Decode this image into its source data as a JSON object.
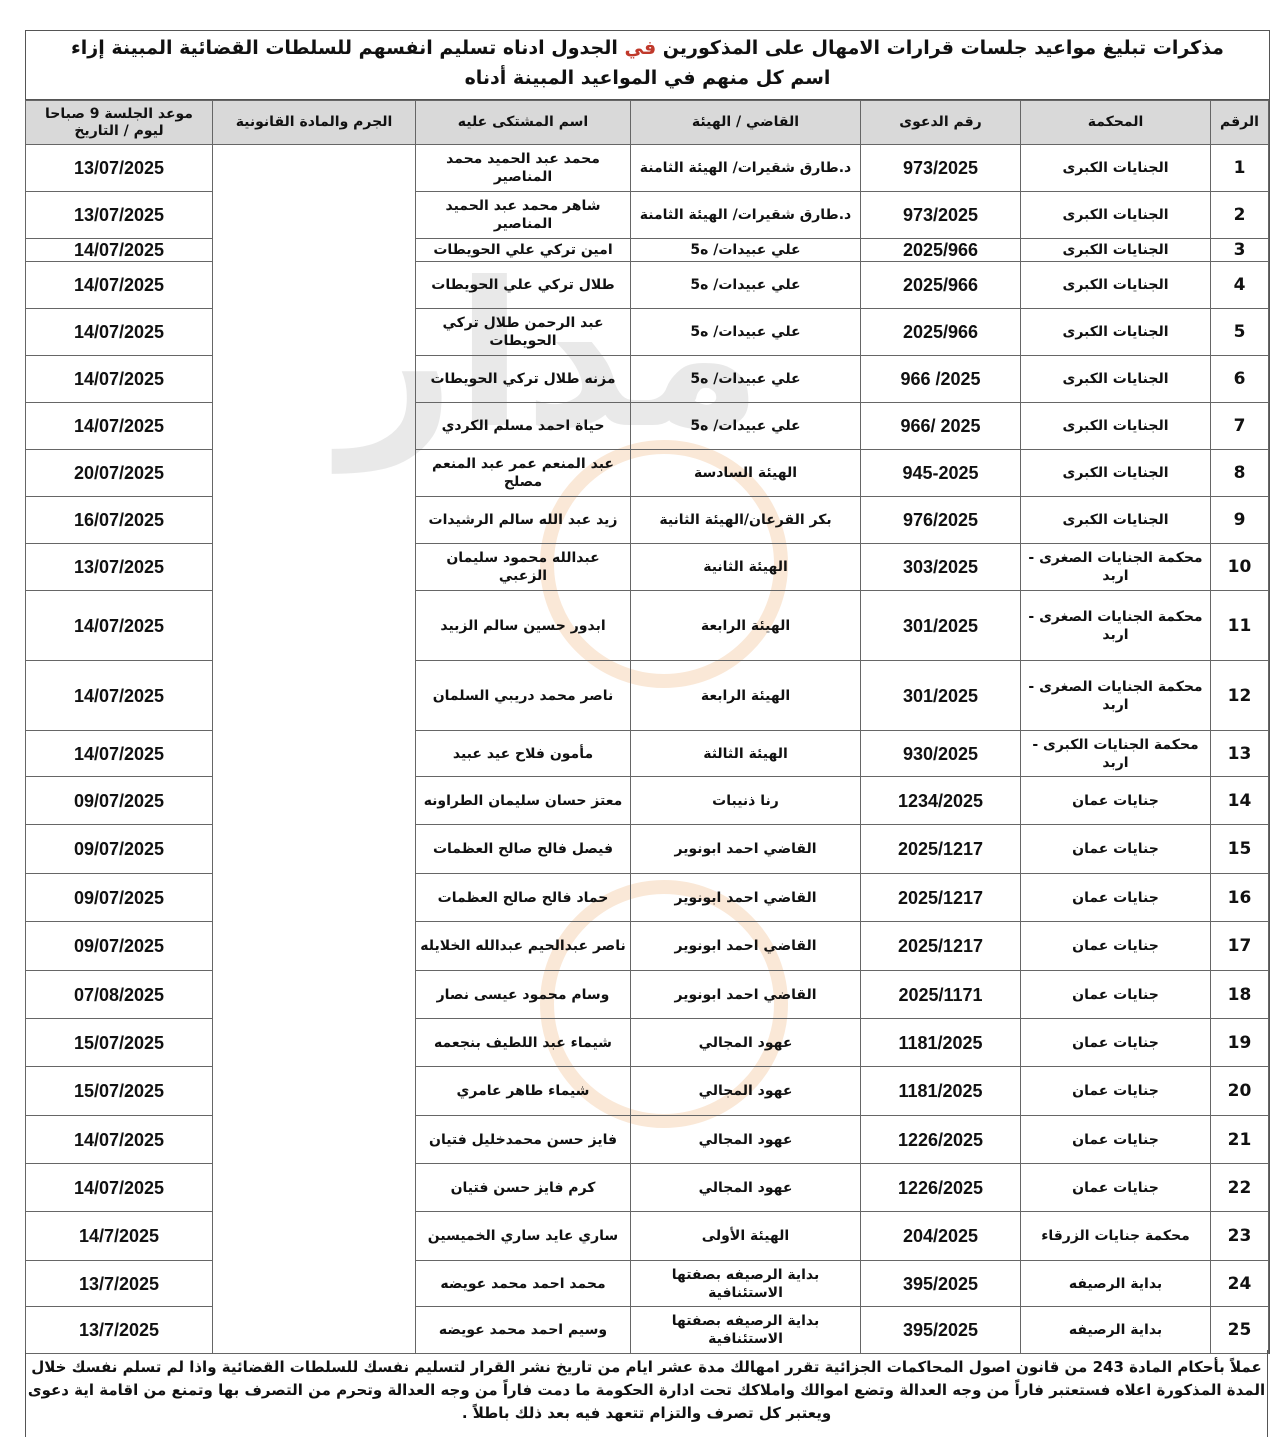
{
  "title": {
    "line1_before": "مذكرات تبليغ مواعيد جلسات قرارات الامهال على المذكورين",
    "line1_highlight": "في",
    "line1_after": "الجدول ادناه تسليم انفسهم للسلطات القضائية المبينة إزاء",
    "line2": "اسم كل منهم في المواعيد المبينة أدناه"
  },
  "headers": [
    "الرقم",
    "المحكمة",
    "رقم الدعوى",
    "القاضي / الهيئة",
    "اسم المشتكى عليه",
    "الجرم والمادة القانونية",
    "موعد الجلسة 9 صباحا ليوم / التاريخ"
  ],
  "rows": [
    {
      "n": "1",
      "court": "الجنايات الكبرى",
      "case": "973/2025",
      "judge": "د.طارق شقيرات/ الهيئة الثامنة",
      "name": "محمد عبد الحميد محمد المناصير",
      "date": "13/07/2025"
    },
    {
      "n": "2",
      "court": "الجنايات الكبرى",
      "case": "973/2025",
      "judge": "د.طارق شقيرات/ الهيئة الثامنة",
      "name": "شاهر محمد عبد الحميد المناصير",
      "date": "13/07/2025"
    },
    {
      "n": "3",
      "court": "الجنايات الكبرى",
      "case": "2025/966",
      "judge": "علي عبيدات/ ه5",
      "name": "امين تركي علي الحويطات",
      "date": "14/07/2025"
    },
    {
      "n": "4",
      "court": "الجنايات الكبرى",
      "case": "2025/966",
      "judge": "علي عبيدات/ ه5",
      "name": "طلال تركي علي الحويطات",
      "date": "14/07/2025"
    },
    {
      "n": "5",
      "court": "الجنايات الكبرى",
      "case": "2025/966",
      "judge": "علي عبيدات/ ه5",
      "name": "عبد الرحمن طلال تركي الحويطات",
      "date": "14/07/2025"
    },
    {
      "n": "6",
      "court": "الجنايات الكبرى",
      "case": "2025/ 966",
      "judge": "علي عبيدات/ ه5",
      "name": "مزنه طلال تركي الحويطات",
      "date": "14/07/2025"
    },
    {
      "n": "7",
      "court": "الجنايات الكبرى",
      "case": "2025 /966",
      "judge": "علي عبيدات/ ه5",
      "name": "حياة احمد مسلم الكردي",
      "date": "14/07/2025"
    },
    {
      "n": "8",
      "court": "الجنايات الكبرى",
      "case": "945-2025",
      "judge": "الهيئة السادسة",
      "name": "عبد المنعم عمر عبد المنعم مصلح",
      "date": "20/07/2025"
    },
    {
      "n": "9",
      "court": "الجنايات الكبرى",
      "case": "976/2025",
      "judge": "بكر القرعان/الهيئة الثانية",
      "name": "زيد عبد الله سالم الرشيدات",
      "date": "16/07/2025"
    },
    {
      "n": "10",
      "court": "محكمة الجنايات الصغرى - اربد",
      "case": "303/2025",
      "judge": "الهيئة الثانية",
      "name": "عبدالله محمود سليمان الزعبي",
      "date": "13/07/2025"
    },
    {
      "n": "11",
      "court": "محكمة الجنايات الصغرى - اربد",
      "case": "301/2025",
      "judge": "الهيئة الرابعة",
      "name": "ابدور حسين سالم الزبيد",
      "date": "14/07/2025"
    },
    {
      "n": "12",
      "court": "محكمة الجنايات الصغرى - اربد",
      "case": "301/2025",
      "judge": "الهيئة الرابعة",
      "name": "ناصر محمد دريبي السلمان",
      "date": "14/07/2025"
    },
    {
      "n": "13",
      "court": "محكمة الجنايات الكبرى - اربد",
      "case": "930/2025",
      "judge": "الهيئة الثالثة",
      "name": "مأمون فلاح عيد عبيد",
      "date": "14/07/2025"
    },
    {
      "n": "14",
      "court": "جنايات عمان",
      "case": "1234/2025",
      "judge": "رنا ذنيبات",
      "name": "معتز حسان سليمان الطراونه",
      "date": "09/07/2025"
    },
    {
      "n": "15",
      "court": "جنايات عمان",
      "case": "2025/1217",
      "judge": "القاضي احمد ابونوير",
      "name": "فيصل فالح صالح العظمات",
      "date": "09/07/2025"
    },
    {
      "n": "16",
      "court": "جنايات عمان",
      "case": "2025/1217",
      "judge": "القاضي احمد ابونوير",
      "name": "حماد فالح صالح العظمات",
      "date": "09/07/2025"
    },
    {
      "n": "17",
      "court": "جنايات عمان",
      "case": "2025/1217",
      "judge": "القاضي احمد ابونوير",
      "name": "ناصر عبدالحيم عبدالله الخلايله",
      "date": "09/07/2025"
    },
    {
      "n": "18",
      "court": "جنايات عمان",
      "case": "2025/1171",
      "judge": "القاضي احمد ابونوير",
      "name": "وسام محمود عيسى نصار",
      "date": "07/08/2025"
    },
    {
      "n": "19",
      "court": "جنايات عمان",
      "case": "1181/2025",
      "judge": "عهود المجالي",
      "name": "شيماء عبد اللطيف بنجعمه",
      "date": "15/07/2025"
    },
    {
      "n": "20",
      "court": "جنايات عمان",
      "case": "1181/2025",
      "judge": "عهود المجالي",
      "name": "شيماء طاهر عامري",
      "date": "15/07/2025"
    },
    {
      "n": "21",
      "court": "جنايات عمان",
      "case": "1226/2025",
      "judge": "عهود المجالي",
      "name": "فايز حسن محمدخليل فتيان",
      "date": "14/07/2025"
    },
    {
      "n": "22",
      "court": "جنايات عمان",
      "case": "1226/2025",
      "judge": "عهود المجالي",
      "name": "كرم فايز حسن فتيان",
      "date": "14/07/2025"
    },
    {
      "n": "23",
      "court": "محكمة جنايات الزرقاء",
      "case": "204/2025",
      "judge": "الهيئة الأولى",
      "name": "ساري عايد ساري الخميسين",
      "date": "14/7/2025"
    },
    {
      "n": "24",
      "court": "بداية الرصيفه",
      "case": "395/2025",
      "judge": "بداية الرصيفه بصفتها الاستئنافية",
      "name": "محمد احمد محمد عويضه",
      "date": "13/7/2025"
    },
    {
      "n": "25",
      "court": "بداية الرصيفه",
      "case": "395/2025",
      "judge": "بداية الرصيفه بصفتها الاستئنافية",
      "name": "وسيم احمد محمد عويضه",
      "date": "13/7/2025"
    }
  ],
  "footer": "عملاً بأحكام المادة 243 من قانون اصول المحاكمات الجزائية تقرر امهالك مدة عشر ايام من تاريخ نشر القرار لتسليم نفسك للسلطات القضائية واذا لم تسلم نفسك خلال المدة المذكورة اعلاه فستعتبر فاراً من وجه العدالة وتضع اموالك واملاكك تحت ادارة الحكومة ما دمت فاراً من وجه العدالة وتحرم من التصرف بها وتمنع من اقامة اية دعوى ويعتبر كل تصرف والتزام تتعهد فيه بعد ذلك باطلاً .",
  "colors": {
    "header_bg": "#d9d9d9",
    "highlight": "#c0392b"
  }
}
